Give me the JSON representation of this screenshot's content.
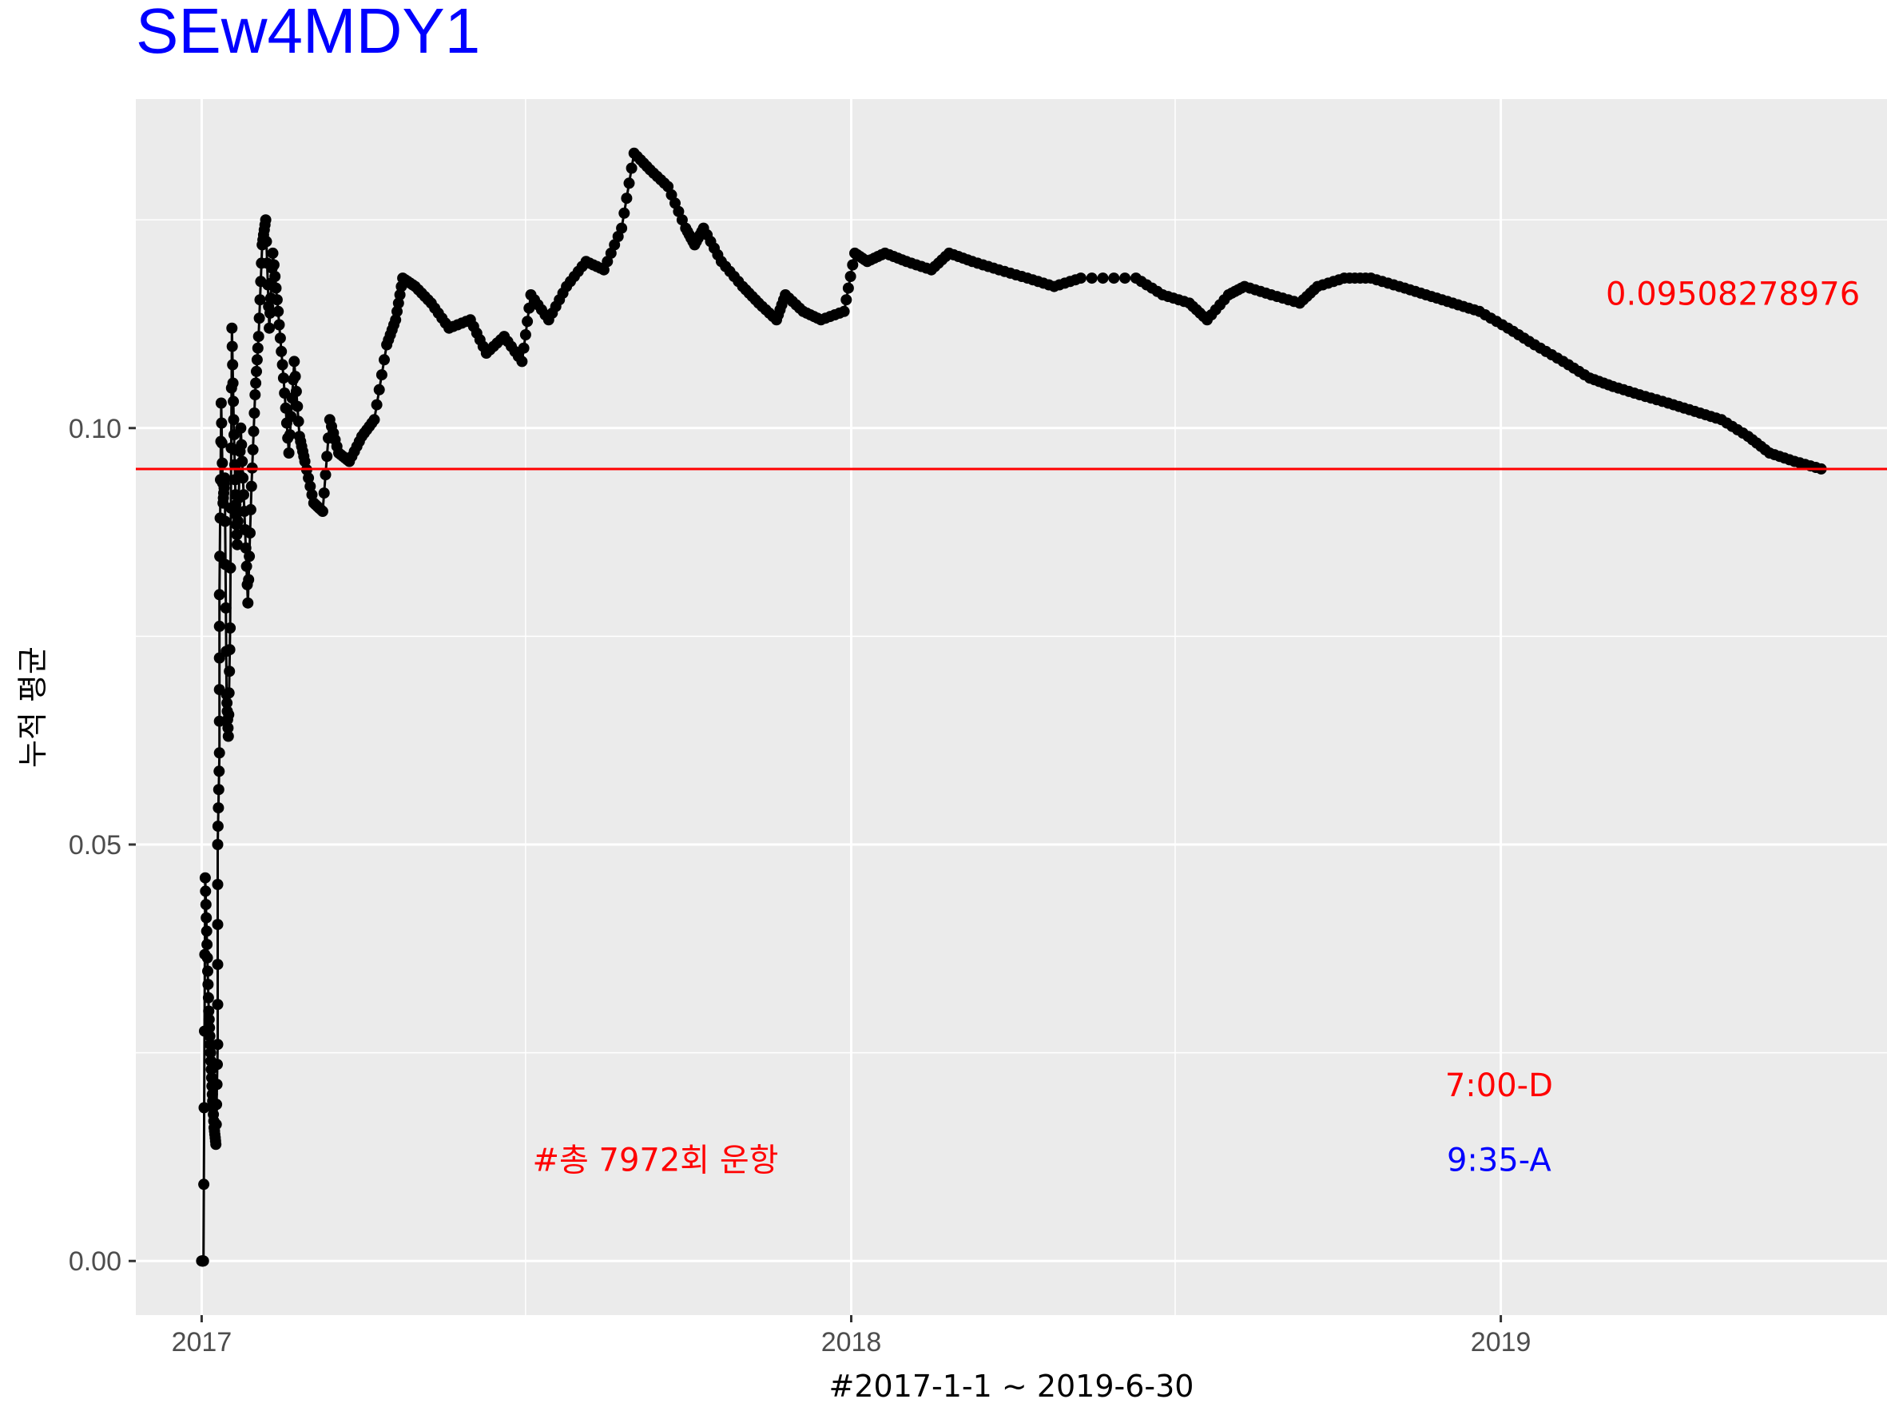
{
  "chart_data": {
    "type": "line",
    "title": "SEw4MDY1",
    "xlabel": "#2017-1-1 ~ 2019-6-30",
    "ylabel": "누적 평균",
    "x_domain": [
      "2016-11-25",
      "2019-08-06"
    ],
    "ylim": [
      -0.0065,
      0.1395
    ],
    "x_ticks": [
      {
        "date": "2017-01-01",
        "label": "2017"
      },
      {
        "date": "2018-01-01",
        "label": "2018"
      },
      {
        "date": "2019-01-01",
        "label": "2019"
      }
    ],
    "x_minor_ticks": [
      "2017-07-02",
      "2018-07-02"
    ],
    "y_ticks": [
      {
        "value": 0.0,
        "label": "0.00"
      },
      {
        "value": 0.05,
        "label": "0.05"
      },
      {
        "value": 0.1,
        "label": "0.10"
      }
    ],
    "y_minor_ticks": [
      0.025,
      0.075,
      0.125
    ],
    "grid": true,
    "background": "#ebebeb",
    "series_color": "#000000",
    "reference_line": {
      "value": 0.0950827898,
      "color": "#ff0000"
    },
    "annotations": [
      {
        "text": "0.09508278976",
        "x": "2019-03-01",
        "y": 0.1148,
        "color": "#ff0000",
        "anchor": "start"
      },
      {
        "text": "7:00-D",
        "x": "2018-12-31",
        "y": 0.0198,
        "color": "#ff0000",
        "anchor": "middle"
      },
      {
        "text": "9:35-A",
        "x": "2018-12-31",
        "y": 0.0108,
        "color": "#0000ff",
        "anchor": "middle"
      },
      {
        "text": "#총 7972회 운항",
        "x": "2017-09-13",
        "y": 0.0108,
        "color": "#ff0000",
        "anchor": "middle"
      }
    ],
    "title_color": "#0000ff",
    "series": [
      {
        "values": [
          [
            "2017-01-01",
            0.0
          ],
          [
            "2017-01-02",
            0.0
          ],
          [
            "2017-01-03",
            0.046
          ],
          [
            "2017-01-04",
            0.038
          ],
          [
            "2017-01-05",
            0.03
          ],
          [
            "2017-01-06",
            0.025
          ],
          [
            "2017-01-07",
            0.02
          ],
          [
            "2017-01-08",
            0.016
          ],
          [
            "2017-01-09",
            0.014
          ],
          [
            "2017-01-10",
            0.026
          ],
          [
            "2017-01-10",
            0.05
          ],
          [
            "2017-01-11",
            0.061
          ],
          [
            "2017-01-11",
            0.08
          ],
          [
            "2017-01-12",
            0.103
          ],
          [
            "2017-01-13",
            0.091
          ],
          [
            "2017-01-14",
            0.094
          ],
          [
            "2017-01-15",
            0.068
          ],
          [
            "2017-01-16",
            0.063
          ],
          [
            "2017-01-17",
            0.076
          ],
          [
            "2017-01-18",
            0.112
          ],
          [
            "2017-01-19",
            0.101
          ],
          [
            "2017-01-20",
            0.092
          ],
          [
            "2017-01-21",
            0.086
          ],
          [
            "2017-01-23",
            0.1
          ],
          [
            "2017-01-25",
            0.09
          ],
          [
            "2017-01-27",
            0.079
          ],
          [
            "2017-01-29",
            0.093
          ],
          [
            "2017-01-31",
            0.104
          ],
          [
            "2017-02-02",
            0.111
          ],
          [
            "2017-02-04",
            0.122
          ],
          [
            "2017-02-06",
            0.125
          ],
          [
            "2017-02-08",
            0.112
          ],
          [
            "2017-02-10",
            0.121
          ],
          [
            "2017-02-13",
            0.114
          ],
          [
            "2017-02-16",
            0.106
          ],
          [
            "2017-02-19",
            0.097
          ],
          [
            "2017-02-22",
            0.108
          ],
          [
            "2017-02-25",
            0.099
          ],
          [
            "2017-02-28",
            0.096
          ],
          [
            "2017-03-05",
            0.091
          ],
          [
            "2017-03-10",
            0.09
          ],
          [
            "2017-03-14",
            0.101
          ],
          [
            "2017-03-19",
            0.097
          ],
          [
            "2017-03-25",
            0.096
          ],
          [
            "2017-04-01",
            0.099
          ],
          [
            "2017-04-08",
            0.101
          ],
          [
            "2017-04-15",
            0.11
          ],
          [
            "2017-04-20",
            0.113
          ],
          [
            "2017-04-24",
            0.118
          ],
          [
            "2017-05-01",
            0.117
          ],
          [
            "2017-05-10",
            0.115
          ],
          [
            "2017-05-20",
            0.112
          ],
          [
            "2017-06-01",
            0.113
          ],
          [
            "2017-06-10",
            0.109
          ],
          [
            "2017-06-20",
            0.111
          ],
          [
            "2017-06-30",
            0.108
          ],
          [
            "2017-07-05",
            0.116
          ],
          [
            "2017-07-15",
            0.113
          ],
          [
            "2017-07-25",
            0.117
          ],
          [
            "2017-08-05",
            0.12
          ],
          [
            "2017-08-15",
            0.119
          ],
          [
            "2017-08-25",
            0.124
          ],
          [
            "2017-09-01",
            0.133
          ],
          [
            "2017-09-10",
            0.131
          ],
          [
            "2017-09-20",
            0.129
          ],
          [
            "2017-09-30",
            0.124
          ],
          [
            "2017-10-05",
            0.122
          ],
          [
            "2017-10-10",
            0.124
          ],
          [
            "2017-10-20",
            0.12
          ],
          [
            "2017-11-01",
            0.117
          ],
          [
            "2017-11-10",
            0.115
          ],
          [
            "2017-11-20",
            0.113
          ],
          [
            "2017-11-25",
            0.116
          ],
          [
            "2017-12-05",
            0.114
          ],
          [
            "2017-12-15",
            0.113
          ],
          [
            "2017-12-28",
            0.114
          ],
          [
            "2018-01-03",
            0.121
          ],
          [
            "2018-01-10",
            0.12
          ],
          [
            "2018-01-20",
            0.121
          ],
          [
            "2018-02-01",
            0.12
          ],
          [
            "2018-02-15",
            0.119
          ],
          [
            "2018-02-25",
            0.121
          ],
          [
            "2018-03-10",
            0.12
          ],
          [
            "2018-03-25",
            0.119
          ],
          [
            "2018-04-10",
            0.118
          ],
          [
            "2018-04-25",
            0.117
          ],
          [
            "2018-05-10",
            0.118
          ],
          [
            "2018-06-10",
            0.118
          ],
          [
            "2018-06-25",
            0.116
          ],
          [
            "2018-07-10",
            0.115
          ],
          [
            "2018-07-20",
            0.113
          ],
          [
            "2018-08-01",
            0.116
          ],
          [
            "2018-08-10",
            0.117
          ],
          [
            "2018-08-25",
            0.116
          ],
          [
            "2018-09-10",
            0.115
          ],
          [
            "2018-09-20",
            0.117
          ],
          [
            "2018-10-05",
            0.118
          ],
          [
            "2018-10-20",
            0.118
          ],
          [
            "2018-11-05",
            0.117
          ],
          [
            "2018-11-20",
            0.116
          ],
          [
            "2018-12-05",
            0.115
          ],
          [
            "2018-12-20",
            0.114
          ],
          [
            "2019-01-05",
            0.112
          ],
          [
            "2019-01-20",
            0.11
          ],
          [
            "2019-02-05",
            0.108
          ],
          [
            "2019-02-20",
            0.106
          ],
          [
            "2019-03-05",
            0.105
          ],
          [
            "2019-03-20",
            0.104
          ],
          [
            "2019-04-05",
            0.103
          ],
          [
            "2019-04-20",
            0.102
          ],
          [
            "2019-05-05",
            0.101
          ],
          [
            "2019-05-20",
            0.099
          ],
          [
            "2019-06-01",
            0.097
          ],
          [
            "2019-06-15",
            0.096
          ],
          [
            "2019-06-30",
            0.0951
          ]
        ]
      }
    ]
  }
}
